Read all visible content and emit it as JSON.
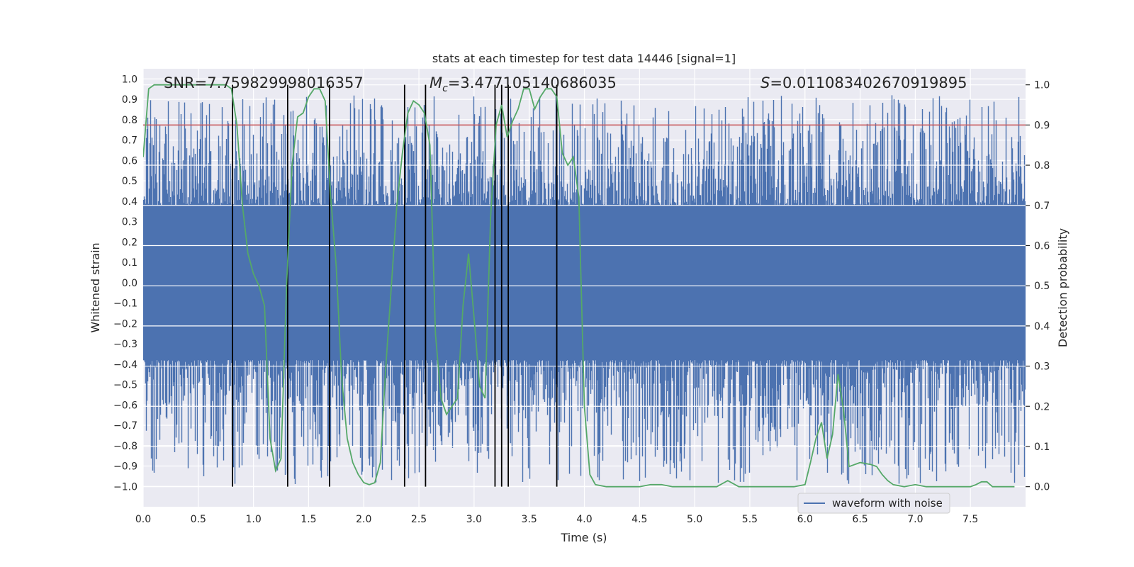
{
  "chart_data": {
    "type": "line",
    "title": "stats at each timestep for test data 14446 [signal=1]",
    "xlabel": "Time (s)",
    "ylabel": "Whitened strain",
    "y2label": "Detection probability",
    "xlim": [
      0.0,
      8.0
    ],
    "ylim": [
      -1.1,
      1.05
    ],
    "y2lim": [
      -0.05,
      1.04
    ],
    "xticks": [
      0.0,
      0.5,
      1.0,
      1.5,
      2.0,
      2.5,
      3.0,
      3.5,
      4.0,
      4.5,
      5.0,
      5.5,
      6.0,
      6.5,
      7.0,
      7.5
    ],
    "xtick_labels": [
      "0.0",
      "0.5",
      "1.0",
      "1.5",
      "2.0",
      "2.5",
      "3.0",
      "3.5",
      "4.0",
      "4.5",
      "5.0",
      "5.5",
      "6.0",
      "6.5",
      "7.0",
      "7.5"
    ],
    "yticks": [
      1.0,
      0.9,
      0.8,
      0.7,
      0.6,
      0.5,
      0.4,
      0.3,
      0.2,
      0.1,
      0.0,
      -0.1,
      -0.2,
      -0.3,
      -0.4,
      -0.5,
      -0.6,
      -0.7,
      -0.8,
      -0.9,
      -1.0
    ],
    "ytick_labels": [
      "1.0",
      "0.9",
      "0.8",
      "0.7",
      "0.6",
      "0.5",
      "0.4",
      "0.3",
      "0.2",
      "0.1",
      "0.0",
      "−0.1",
      "−0.2",
      "−0.3",
      "−0.4",
      "−0.5",
      "−0.6",
      "−0.7",
      "−0.8",
      "−0.9",
      "−1.0"
    ],
    "y2ticks": [
      1.0,
      0.9,
      0.8,
      0.7,
      0.6,
      0.5,
      0.4,
      0.3,
      0.2,
      0.1,
      0.0
    ],
    "y2tick_labels": [
      "1.0",
      "0.9",
      "0.8",
      "0.7",
      "0.6",
      "0.5",
      "0.4",
      "0.3",
      "0.2",
      "0.1",
      "0.0"
    ],
    "annotations": {
      "snr": "SNR=7.759829998016357",
      "mc_symbol": "M",
      "mc_sub": "c",
      "mc_value": "=3.477105140686035",
      "s_symbol": "S",
      "s_value": "=0.011083402670919895"
    },
    "threshold": {
      "y2": 0.9,
      "color": "#c44e52"
    },
    "vlines_x": [
      0.81,
      1.31,
      1.69,
      2.37,
      2.56,
      3.19,
      3.25,
      3.31,
      3.75
    ],
    "series": [
      {
        "name": "waveform with noise",
        "color": "#4c72b0",
        "axis": "left",
        "kind": "noise",
        "amplitude_core": 0.38,
        "peak_max": 0.92,
        "trough_min": -0.99
      },
      {
        "name": "detection probability",
        "color": "#55a868",
        "axis": "right",
        "x": [
          0.0,
          0.05,
          0.1,
          0.15,
          0.2,
          0.3,
          0.4,
          0.5,
          0.6,
          0.7,
          0.75,
          0.8,
          0.85,
          0.9,
          0.95,
          1.0,
          1.05,
          1.1,
          1.15,
          1.2,
          1.25,
          1.3,
          1.35,
          1.4,
          1.45,
          1.5,
          1.55,
          1.6,
          1.65,
          1.7,
          1.75,
          1.8,
          1.85,
          1.9,
          1.95,
          2.0,
          2.05,
          2.1,
          2.15,
          2.2,
          2.25,
          2.3,
          2.35,
          2.4,
          2.45,
          2.5,
          2.55,
          2.6,
          2.65,
          2.7,
          2.75,
          2.8,
          2.85,
          2.9,
          2.95,
          3.0,
          3.05,
          3.1,
          3.15,
          3.2,
          3.25,
          3.3,
          3.35,
          3.4,
          3.45,
          3.5,
          3.55,
          3.6,
          3.65,
          3.7,
          3.75,
          3.8,
          3.85,
          3.9,
          3.95,
          4.0,
          4.05,
          4.1,
          4.2,
          4.3,
          4.4,
          4.5,
          4.6,
          4.7,
          4.8,
          4.9,
          5.0,
          5.1,
          5.2,
          5.3,
          5.4,
          5.5,
          5.6,
          5.7,
          5.8,
          5.9,
          6.0,
          6.05,
          6.1,
          6.15,
          6.2,
          6.25,
          6.3,
          6.35,
          6.4,
          6.5,
          6.6,
          6.65,
          6.7,
          6.75,
          6.8,
          6.9,
          7.0,
          7.1,
          7.2,
          7.3,
          7.4,
          7.5,
          7.55,
          7.6,
          7.65,
          7.7,
          7.8,
          7.9
        ],
        "y": [
          0.82,
          0.99,
          1.0,
          1.0,
          1.0,
          1.0,
          1.0,
          1.0,
          1.0,
          1.0,
          1.0,
          0.99,
          0.9,
          0.7,
          0.58,
          0.53,
          0.5,
          0.45,
          0.12,
          0.04,
          0.07,
          0.5,
          0.8,
          0.92,
          0.93,
          0.97,
          0.99,
          0.99,
          0.96,
          0.72,
          0.55,
          0.27,
          0.12,
          0.06,
          0.03,
          0.01,
          0.005,
          0.01,
          0.06,
          0.3,
          0.5,
          0.7,
          0.83,
          0.93,
          0.96,
          0.95,
          0.93,
          0.85,
          0.38,
          0.22,
          0.18,
          0.2,
          0.22,
          0.45,
          0.58,
          0.42,
          0.25,
          0.22,
          0.67,
          0.9,
          0.95,
          0.87,
          0.91,
          0.94,
          0.99,
          0.99,
          0.94,
          0.97,
          0.99,
          0.99,
          0.97,
          0.83,
          0.8,
          0.82,
          0.72,
          0.2,
          0.03,
          0.005,
          0.0,
          0.0,
          0.0,
          0.0,
          0.005,
          0.005,
          0.0,
          0.0,
          0.0,
          0.0,
          0.0,
          0.015,
          0.0,
          0.0,
          0.0,
          0.0,
          0.0,
          0.0,
          0.005,
          0.06,
          0.12,
          0.16,
          0.07,
          0.13,
          0.28,
          0.19,
          0.05,
          0.06,
          0.055,
          0.05,
          0.03,
          0.015,
          0.005,
          0.0,
          0.005,
          0.0,
          0.0,
          0.0,
          0.0,
          0.0,
          0.005,
          0.012,
          0.012,
          0.0,
          0.0,
          0.0
        ]
      }
    ],
    "legend": {
      "placement": "bottom-right",
      "label": "waveform with noise"
    }
  }
}
